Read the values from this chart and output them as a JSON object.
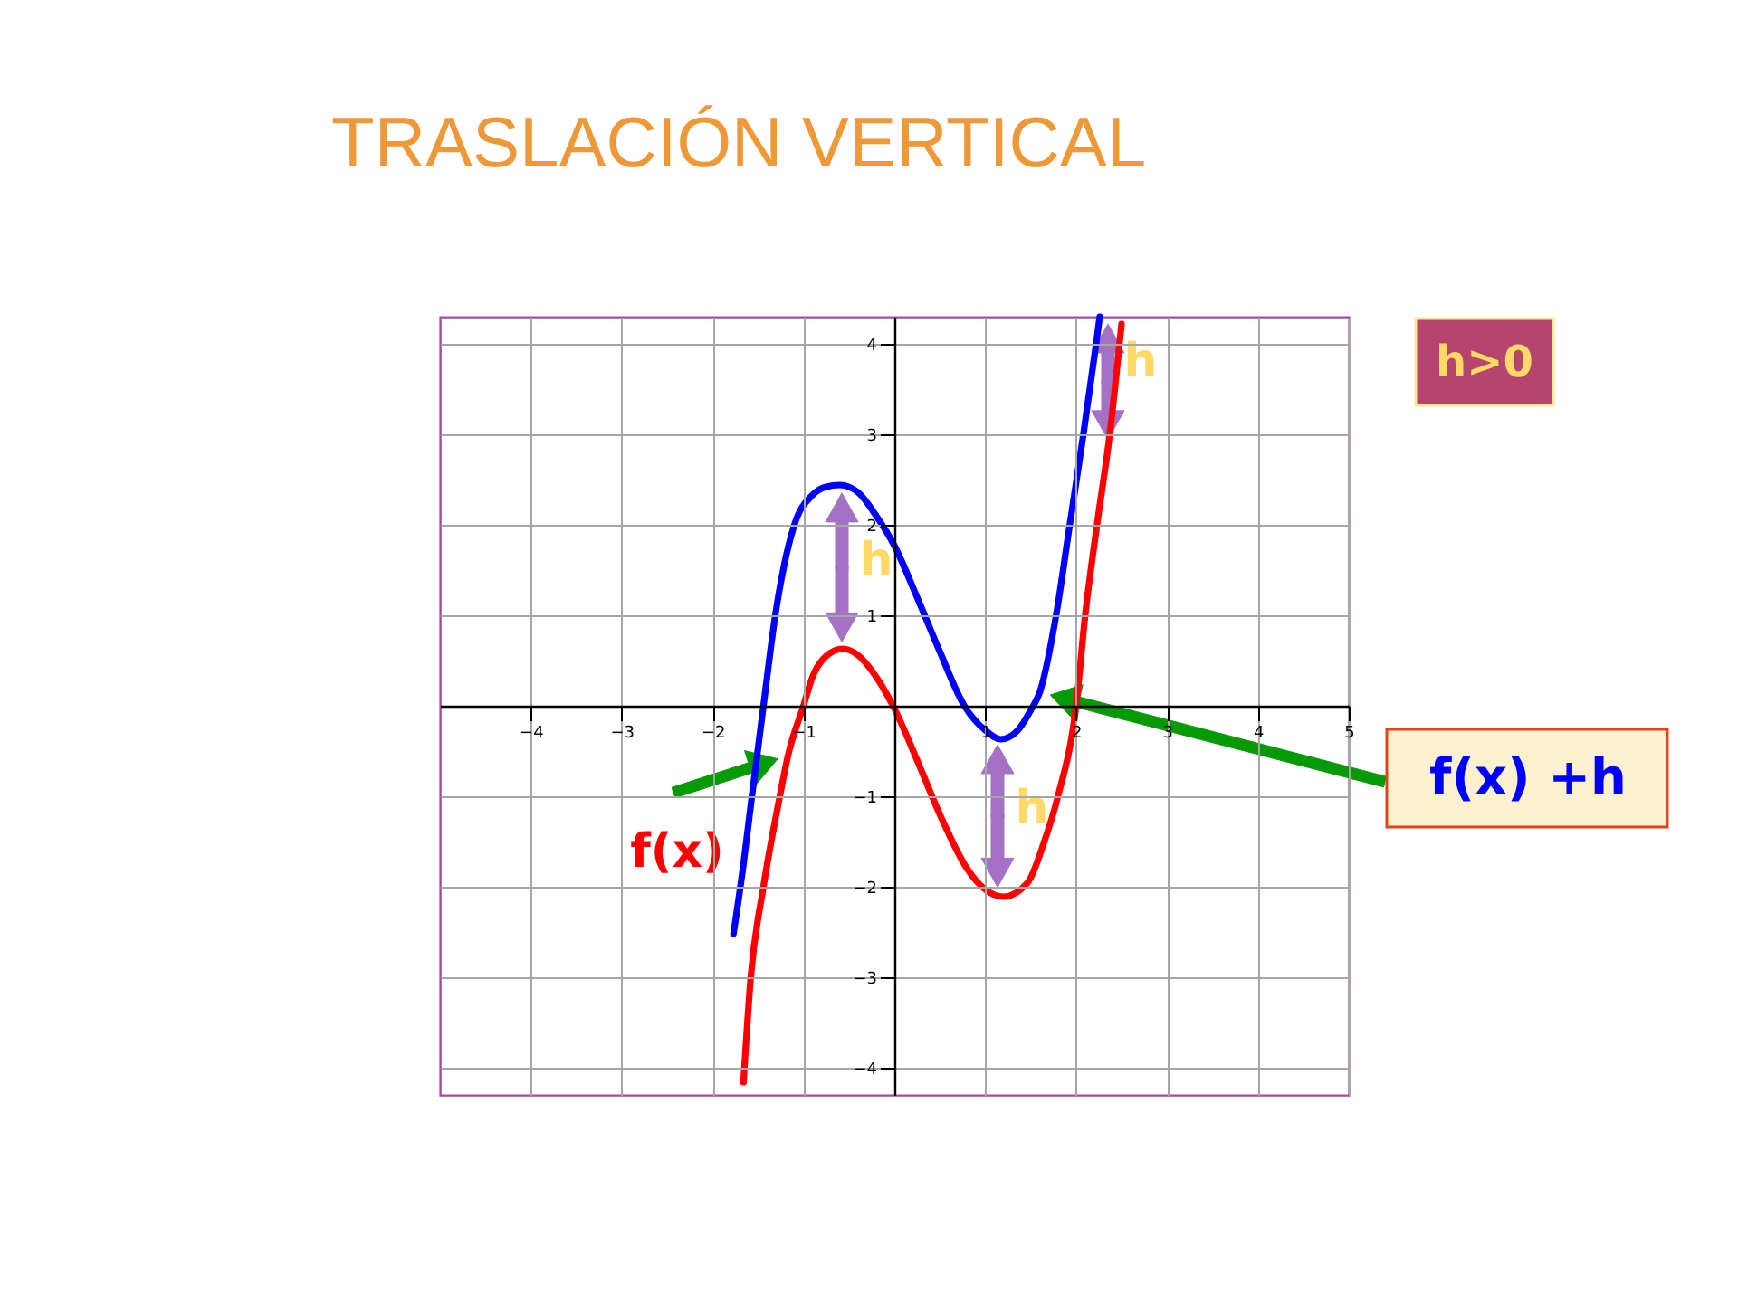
{
  "chart_data": {
    "type": "line",
    "title": "TRASLACIÓN VERTICAL",
    "xlim": [
      -5,
      5
    ],
    "xticks": [
      -4,
      -3,
      -2,
      -1,
      1,
      2,
      3,
      4,
      5
    ],
    "ylim": [
      -4.3,
      4.3
    ],
    "yticks": [
      -4,
      -3,
      -2,
      -1,
      1,
      2,
      3,
      4
    ],
    "grid": true,
    "series": [
      {
        "name": "f(x)",
        "color": "#ff0000",
        "x": [
          -1.66,
          -1.58,
          -1.44,
          -1.26,
          -1.17,
          -1.0,
          -0.9,
          -0.75,
          -0.57,
          -0.4,
          -0.2,
          0.0,
          0.25,
          0.5,
          0.8,
          1.0,
          1.2,
          1.47,
          1.65,
          1.8,
          2.0,
          2.1,
          2.23,
          2.37,
          2.5
        ],
        "values": [
          -4.16,
          -3.0,
          -2.0,
          -1.0,
          -0.55,
          0.0,
          0.32,
          0.55,
          0.63,
          0.56,
          0.32,
          -0.03,
          -0.6,
          -1.2,
          -1.8,
          -2.03,
          -2.11,
          -1.95,
          -1.5,
          -1.0,
          0.0,
          1.0,
          2.0,
          3.0,
          4.22
        ]
      },
      {
        "name": "f(x) +h",
        "color": "#0000ff",
        "x": [
          -1.77,
          -1.66,
          -1.58,
          -1.44,
          -1.31,
          -1.1,
          -0.9,
          -0.75,
          -0.6,
          -0.4,
          -0.2,
          0.0,
          0.25,
          0.5,
          0.77,
          1.0,
          1.17,
          1.35,
          1.5,
          1.6,
          1.78,
          1.93,
          2.08,
          2.22,
          2.26
        ],
        "values": [
          -2.52,
          -1.75,
          -1.1,
          0.0,
          1.0,
          2.0,
          2.33,
          2.42,
          2.44,
          2.36,
          2.1,
          1.77,
          1.2,
          0.6,
          0.0,
          -0.27,
          -0.37,
          -0.28,
          -0.05,
          0.15,
          1.0,
          2.0,
          3.0,
          4.0,
          4.3
        ]
      }
    ],
    "annotations": [
      "h",
      "h",
      "h",
      "h>0"
    ]
  }
}
